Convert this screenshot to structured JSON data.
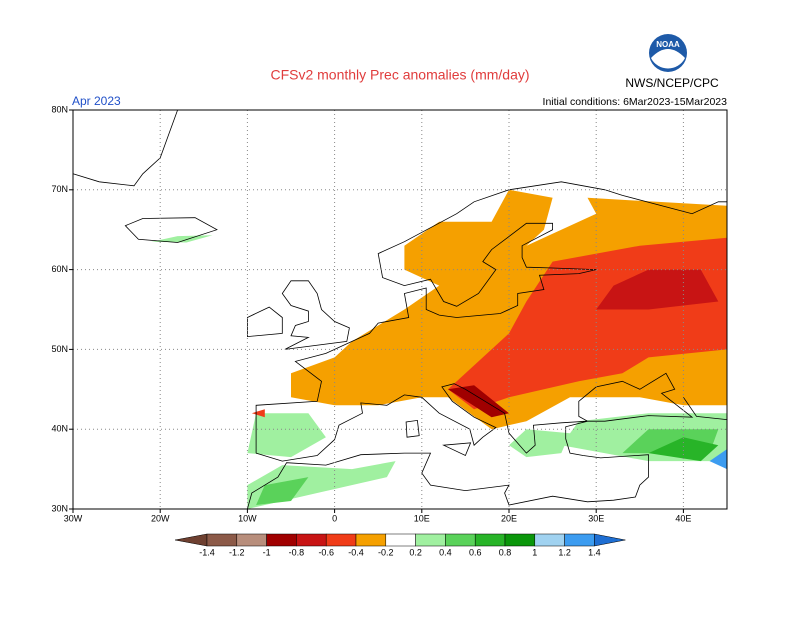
{
  "header": {
    "title": "CFSv2 monthly Prec anomalies (mm/day)",
    "agency": "NWS/NCEP/CPC",
    "logo": "NOAA",
    "month": "Apr 2023",
    "initial_conditions": "Initial conditions: 6Mar2023-15Mar2023"
  },
  "map": {
    "lat_labels": [
      "80N",
      "70N",
      "60N",
      "50N",
      "40N",
      "30N"
    ],
    "lon_labels": [
      "30W",
      "20W",
      "10W",
      "0",
      "10E",
      "20E",
      "30E",
      "40E"
    ]
  },
  "colorbar": {
    "levels": [
      -1.4,
      -1.2,
      -1,
      -0.8,
      -0.6,
      -0.4,
      -0.2,
      0.2,
      0.4,
      0.6,
      0.8,
      1,
      1.2,
      1.4
    ],
    "colors": [
      "#6e4030",
      "#8c5a48",
      "#b88e7c",
      "#a00000",
      "#c81414",
      "#f03c18",
      "#f5a000",
      "#ffffff",
      "#a0f0a0",
      "#5ad25a",
      "#28b428",
      "#0a960a",
      "#a0d2f0",
      "#3c9cf0",
      "#1e6ed2"
    ]
  }
}
